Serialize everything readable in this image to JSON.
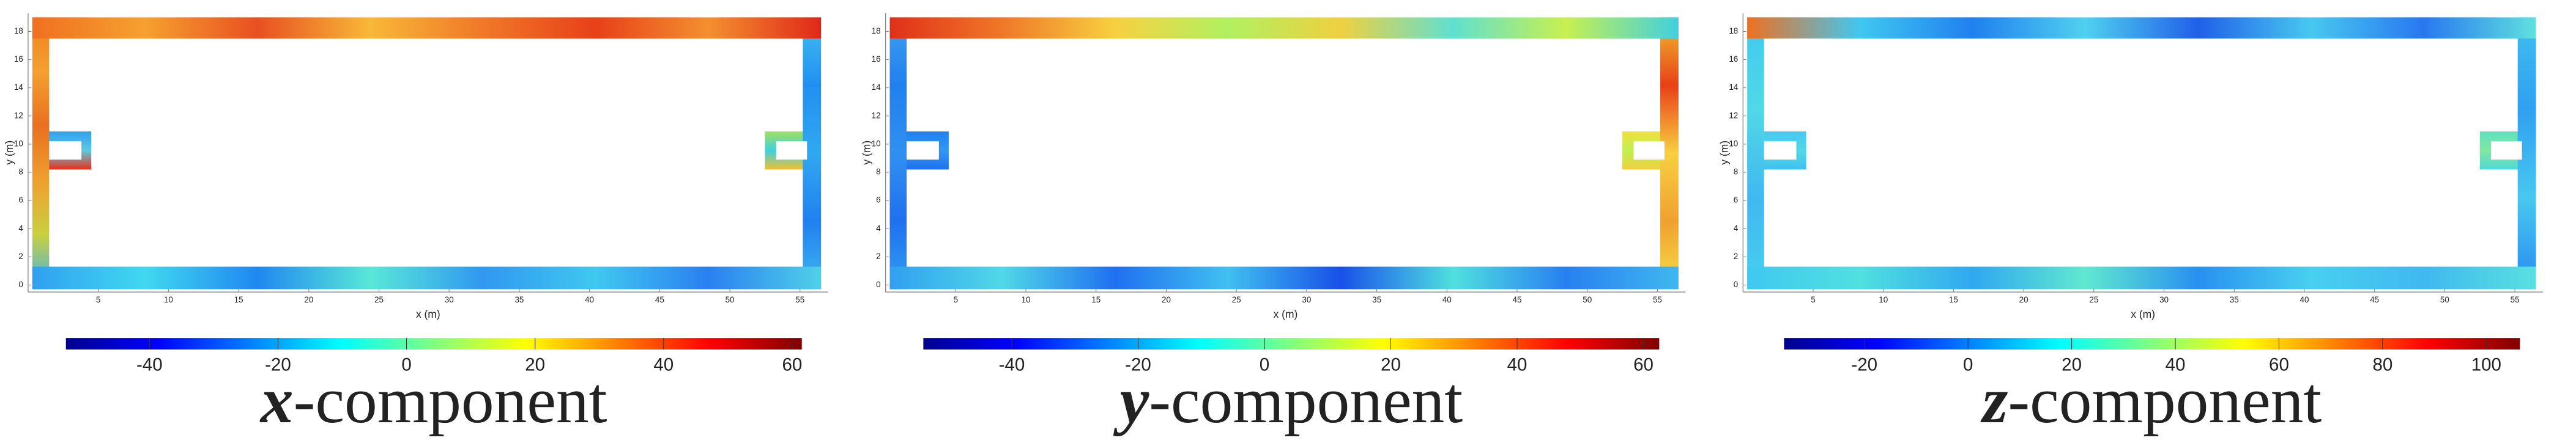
{
  "chart_data": [
    {
      "type": "heatmap",
      "caption_symbol": "x",
      "caption_text": "-component",
      "xlabel": "x (m)",
      "ylabel": "y (m)",
      "xlim": [
        0,
        57
      ],
      "ylim": [
        -0.5,
        19.3
      ],
      "xticks": [
        5,
        10,
        15,
        20,
        25,
        30,
        35,
        40,
        45,
        50,
        55
      ],
      "yticks": [
        0,
        2,
        4,
        6,
        8,
        10,
        12,
        14,
        16,
        18
      ],
      "colorbar": {
        "clim": [
          -53,
          61.5
        ],
        "ticks": [
          -40,
          -20,
          0,
          20,
          40,
          60
        ]
      }
    },
    {
      "type": "heatmap",
      "caption_symbol": "y",
      "caption_text": "-component",
      "xlabel": "x (m)",
      "ylabel": "y (m)",
      "xlim": [
        0,
        57
      ],
      "ylim": [
        -0.5,
        19.3
      ],
      "xticks": [
        5,
        10,
        15,
        20,
        25,
        30,
        35,
        40,
        45,
        50,
        55
      ],
      "yticks": [
        0,
        2,
        4,
        6,
        8,
        10,
        12,
        14,
        16,
        18
      ],
      "colorbar": {
        "clim": [
          -54,
          62.5
        ],
        "ticks": [
          -40,
          -20,
          0,
          20,
          40,
          60
        ]
      }
    },
    {
      "type": "heatmap",
      "caption_symbol": "z",
      "caption_text": "-component",
      "xlabel": "x (m)",
      "ylabel": "y (m)",
      "xlim": [
        0,
        57
      ],
      "ylim": [
        -0.5,
        19.3
      ],
      "xticks": [
        5,
        10,
        15,
        20,
        25,
        30,
        35,
        40,
        45,
        50,
        55
      ],
      "yticks": [
        0,
        2,
        4,
        6,
        8,
        10,
        12,
        14,
        16,
        18
      ],
      "colorbar": {
        "clim": [
          -35.5,
          106.5
        ],
        "ticks": [
          -20,
          0,
          20,
          40,
          60,
          80,
          100
        ]
      }
    }
  ]
}
